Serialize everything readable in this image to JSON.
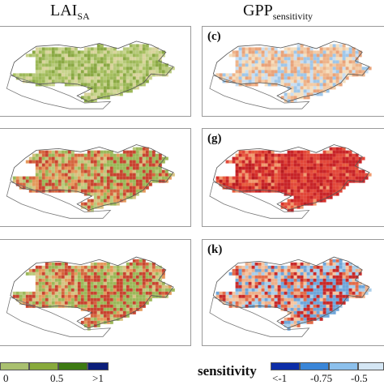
{
  "titles": {
    "left_main": "LAI",
    "left_sub": "SA",
    "right_main": "GPP",
    "right_sub": "sensitivity"
  },
  "panels": {
    "left": [
      {
        "label": ""
      },
      {
        "label": ""
      },
      {
        "label": ""
      }
    ],
    "right": [
      {
        "label": "(c)"
      },
      {
        "label": "(g)"
      },
      {
        "label": "(k)"
      }
    ]
  },
  "colorbar_left": {
    "colors": [
      "#a9c06f",
      "#88aa3c",
      "#3d7a12",
      "#0b1e7a"
    ],
    "ticks": [
      "0",
      "0.5",
      ">1"
    ]
  },
  "colorbar_right": {
    "title": "sensitivity",
    "colors": [
      "#0d2ea8",
      "#3a86d8",
      "#8cc0ec",
      "#d4e6f4"
    ],
    "ticks": [
      "<-1",
      "-0.75",
      "-0.5"
    ]
  },
  "palettes": {
    "left_top": [
      "#b7c97a",
      "#9cb859",
      "#c9d48e",
      "#8aa944",
      "#d9d49c",
      "#a7c061"
    ],
    "left_mid": [
      "#b9c97b",
      "#d8c382",
      "#e59a5c",
      "#d5663f",
      "#c84430",
      "#9cb859"
    ],
    "right_top": [
      "#f5dfbf",
      "#c9def1",
      "#eeb48a",
      "#f2cba6",
      "#9fc7ea",
      "#e9a37a"
    ],
    "right_mid": [
      "#d7302a",
      "#e85d3e",
      "#b81c20",
      "#f09a6e",
      "#e2483a",
      "#c82428"
    ],
    "right_bot": [
      "#f4c7a3",
      "#a9ceea",
      "#e36b48",
      "#eeb08a",
      "#6fa6da",
      "#c82a2a"
    ]
  }
}
